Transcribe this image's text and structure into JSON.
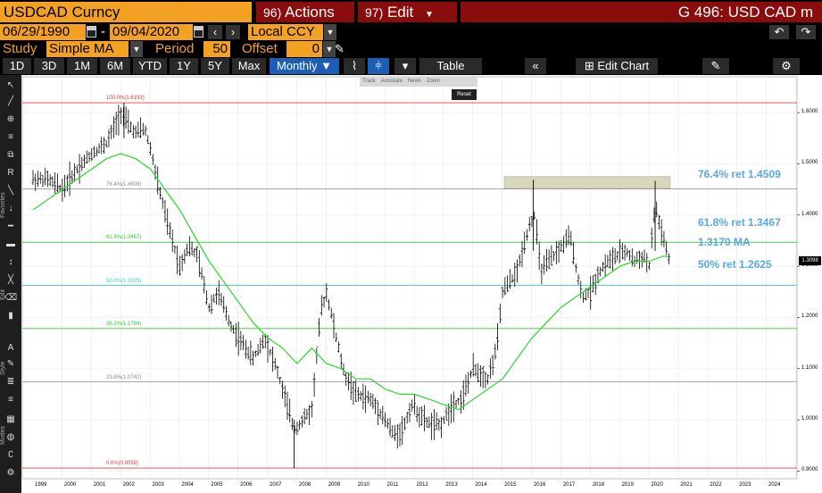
{
  "header": {
    "security": "USDCAD Curncy",
    "actions_num": "96)",
    "actions_label": "Actions",
    "edit_num": "97)",
    "edit_label": "Edit",
    "ticker_title": "G 496: USD CAD m"
  },
  "range": {
    "start": "06/29/1990",
    "end": "09/04/2020",
    "sep": "-",
    "currency": "Local CCY"
  },
  "study": {
    "label": "Study",
    "value": "Simple MA",
    "period_label": "Period",
    "period": "50",
    "offset_label": "Offset",
    "offset": "0"
  },
  "toolbar": {
    "ranges": [
      "1D",
      "3D",
      "1M",
      "6M",
      "YTD",
      "1Y",
      "5Y",
      "Max"
    ],
    "frequency": "Monthly",
    "table": "Table",
    "edit_chart": "Edit Chart"
  },
  "subtoolbar": {
    "track": "Track",
    "annotate": "Annotate",
    "news": "News",
    "zoom": "Zoom",
    "reset": "Reset"
  },
  "lefttools": {
    "favorites": "Favorites",
    "edit": "Edit",
    "style": "Style",
    "modes": "Modes"
  },
  "chart_data": {
    "type": "line",
    "x_years": [
      "1999",
      "2000",
      "2001",
      "2002",
      "2003",
      "2004",
      "2005",
      "2006",
      "2007",
      "2008",
      "2009",
      "2010",
      "2011",
      "2012",
      "2013",
      "2014",
      "2015",
      "2016",
      "2017",
      "2018",
      "2019",
      "2020",
      "2021",
      "2022",
      "2023",
      "2024"
    ],
    "y_ticks": [
      "1.6000",
      "1.5000",
      "1.4000",
      "1.3000",
      "1.2000",
      "1.1000",
      "1.0000",
      "0.9000"
    ],
    "ylim": [
      0.885,
      1.67
    ],
    "fib_levels": [
      {
        "label": "100.0%(1.6193)",
        "value": 1.6193,
        "color": "#e04040"
      },
      {
        "label": "76.4%(1.4509)",
        "value": 1.4509,
        "color": "#999999"
      },
      {
        "label": "61.8%(1.3467)",
        "value": 1.3467,
        "color": "#33cc33"
      },
      {
        "label": "50.0%(1.2625)",
        "value": 1.2625,
        "color": "#33cccc"
      },
      {
        "label": "38.2%(1.1784)",
        "value": 1.1784,
        "color": "#33cc33"
      },
      {
        "label": "23.6%(1.0742)",
        "value": 1.0742,
        "color": "#999999"
      },
      {
        "label": "0.0%(0.9058)",
        "value": 0.9058,
        "color": "#e04040"
      }
    ],
    "annotations": {
      "fib764": "76.4% ret 1.4509",
      "fib618": "61.8% ret 1.3467",
      "ma": "1.3170 MA",
      "fib50": "50% ret 1.2625"
    },
    "last_price": "1.3098",
    "price_series": [
      [
        1999.0,
        1.47
      ],
      [
        1999.5,
        1.47
      ],
      [
        2000.0,
        1.45
      ],
      [
        2000.5,
        1.49
      ],
      [
        2001.0,
        1.52
      ],
      [
        2001.5,
        1.54
      ],
      [
        2002.0,
        1.6
      ],
      [
        2002.2,
        1.58
      ],
      [
        2002.5,
        1.56
      ],
      [
        2002.8,
        1.57
      ],
      [
        2003.0,
        1.53
      ],
      [
        2003.3,
        1.45
      ],
      [
        2003.6,
        1.38
      ],
      [
        2004.0,
        1.3
      ],
      [
        2004.3,
        1.34
      ],
      [
        2004.6,
        1.32
      ],
      [
        2005.0,
        1.22
      ],
      [
        2005.3,
        1.25
      ],
      [
        2005.7,
        1.19
      ],
      [
        2006.0,
        1.16
      ],
      [
        2006.5,
        1.12
      ],
      [
        2006.9,
        1.16
      ],
      [
        2007.3,
        1.1
      ],
      [
        2007.6,
        1.04
      ],
      [
        2007.9,
        0.98
      ],
      [
        2008.2,
        1.0
      ],
      [
        2008.5,
        1.02
      ],
      [
        2008.8,
        1.21
      ],
      [
        2009.0,
        1.25
      ],
      [
        2009.3,
        1.17
      ],
      [
        2009.6,
        1.09
      ],
      [
        2010.0,
        1.05
      ],
      [
        2010.5,
        1.04
      ],
      [
        2010.9,
        1.01
      ],
      [
        2011.3,
        0.97
      ],
      [
        2011.6,
        0.98
      ],
      [
        2011.9,
        1.03
      ],
      [
        2012.3,
        1.0
      ],
      [
        2012.6,
        0.99
      ],
      [
        2012.9,
        0.99
      ],
      [
        2013.3,
        1.03
      ],
      [
        2013.6,
        1.04
      ],
      [
        2014.0,
        1.1
      ],
      [
        2014.5,
        1.08
      ],
      [
        2014.8,
        1.14
      ],
      [
        2015.0,
        1.25
      ],
      [
        2015.5,
        1.29
      ],
      [
        2015.9,
        1.38
      ],
      [
        2016.1,
        1.4
      ],
      [
        2016.3,
        1.29
      ],
      [
        2016.6,
        1.31
      ],
      [
        2016.9,
        1.33
      ],
      [
        2017.3,
        1.36
      ],
      [
        2017.5,
        1.3
      ],
      [
        2017.7,
        1.24
      ],
      [
        2018.0,
        1.25
      ],
      [
        2018.3,
        1.29
      ],
      [
        2018.6,
        1.31
      ],
      [
        2018.9,
        1.32
      ],
      [
        2019.2,
        1.33
      ],
      [
        2019.5,
        1.31
      ],
      [
        2019.8,
        1.32
      ],
      [
        2020.0,
        1.3
      ],
      [
        2020.2,
        1.42
      ],
      [
        2020.4,
        1.37
      ],
      [
        2020.6,
        1.33
      ],
      [
        2020.67,
        1.31
      ]
    ],
    "ma_series": [
      [
        1999.0,
        1.41
      ],
      [
        1999.5,
        1.43
      ],
      [
        2000.0,
        1.45
      ],
      [
        2000.5,
        1.47
      ],
      [
        2001.0,
        1.49
      ],
      [
        2001.5,
        1.51
      ],
      [
        2002.0,
        1.52
      ],
      [
        2002.5,
        1.51
      ],
      [
        2003.0,
        1.49
      ],
      [
        2003.5,
        1.45
      ],
      [
        2004.0,
        1.41
      ],
      [
        2004.5,
        1.36
      ],
      [
        2005.0,
        1.31
      ],
      [
        2005.5,
        1.27
      ],
      [
        2006.0,
        1.23
      ],
      [
        2006.5,
        1.19
      ],
      [
        2007.0,
        1.16
      ],
      [
        2007.5,
        1.14
      ],
      [
        2008.0,
        1.11
      ],
      [
        2008.5,
        1.14
      ],
      [
        2009.0,
        1.11
      ],
      [
        2009.5,
        1.1
      ],
      [
        2010.0,
        1.08
      ],
      [
        2010.5,
        1.08
      ],
      [
        2011.0,
        1.06
      ],
      [
        2011.5,
        1.05
      ],
      [
        2012.0,
        1.05
      ],
      [
        2012.5,
        1.04
      ],
      [
        2013.0,
        1.03
      ],
      [
        2013.5,
        1.02
      ],
      [
        2014.0,
        1.04
      ],
      [
        2014.5,
        1.06
      ],
      [
        2015.0,
        1.08
      ],
      [
        2015.5,
        1.12
      ],
      [
        2016.0,
        1.16
      ],
      [
        2016.5,
        1.19
      ],
      [
        2017.0,
        1.22
      ],
      [
        2017.5,
        1.24
      ],
      [
        2018.0,
        1.26
      ],
      [
        2018.5,
        1.28
      ],
      [
        2019.0,
        1.3
      ],
      [
        2019.5,
        1.31
      ],
      [
        2020.0,
        1.31
      ],
      [
        2020.5,
        1.32
      ],
      [
        2020.67,
        1.317
      ]
    ]
  }
}
